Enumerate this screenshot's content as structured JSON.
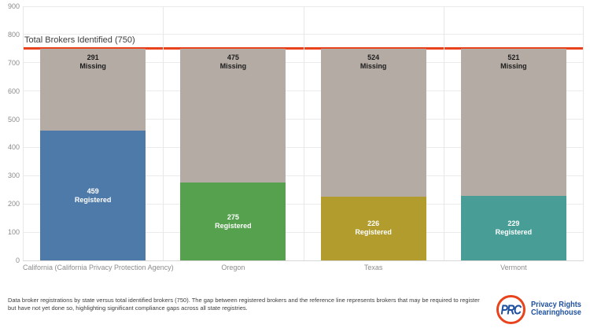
{
  "chart_data": {
    "type": "bar",
    "stacked": true,
    "categories": [
      "California (California Privacy Protection Agency)",
      "Oregon",
      "Texas",
      "Vermont"
    ],
    "series": [
      {
        "name": "Registered",
        "values": [
          459,
          275,
          226,
          229
        ],
        "colors": [
          "#4d7aa9",
          "#55a14e",
          "#b19c2d",
          "#489e97"
        ],
        "label_style": "light"
      },
      {
        "name": "Missing",
        "values": [
          291,
          475,
          524,
          521
        ],
        "colors": [
          "#b5aba5",
          "#b5aba5",
          "#b5aba5",
          "#b5aba5"
        ],
        "label_style": "dark"
      }
    ],
    "reference_line": {
      "value": 750,
      "label": "Total Brokers Identified (750)",
      "color": "#e8431c"
    },
    "ylim": [
      0,
      900
    ],
    "yticks": [
      "0",
      "100",
      "200",
      "300",
      "400",
      "500",
      "600",
      "700",
      "800",
      "900"
    ],
    "grid": true,
    "legend": "none"
  },
  "caption": {
    "line1": "Data broker registrations by state versus total identified brokers (750). The gap between registered brokers and the reference line represents brokers that may be required to register",
    "line2": "but have not yet done so, highlighting significant compliance gaps across all state registries."
  },
  "logo": {
    "monogram": "PRC",
    "line1": "Privacy Rights",
    "line2": "Clearinghouse",
    "ring_color": "#e8431c",
    "text_color": "#1e509f"
  }
}
